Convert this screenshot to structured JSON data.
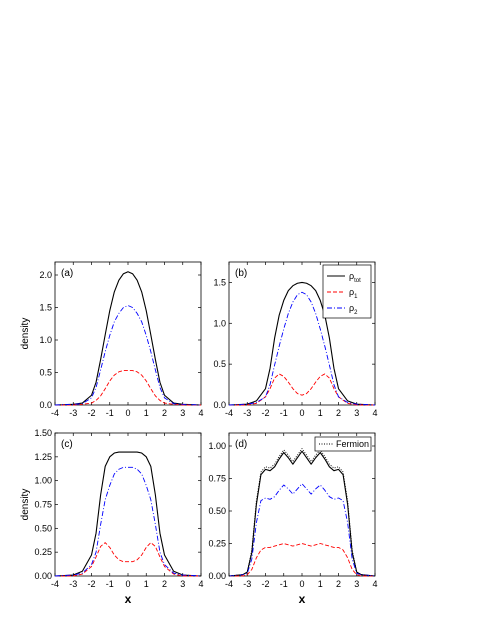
{
  "chart_data": [
    {
      "type": "line",
      "panel_label": "(a)",
      "ylabel": "density",
      "xlabel": "",
      "xlim": [
        -4,
        4
      ],
      "ylim": [
        0,
        2.2
      ],
      "xticks": [
        "-4",
        "-3",
        "-2",
        "-1",
        "0",
        "1",
        "2",
        "3",
        "4"
      ],
      "yticks": [
        "0.0",
        "0.5",
        "1.0",
        "1.5",
        "2.0"
      ],
      "ytick_values": [
        0,
        0.5,
        1.0,
        1.5,
        2.0
      ],
      "x": [
        -4,
        -3,
        -2.5,
        -2,
        -1.75,
        -1.5,
        -1.25,
        -1,
        -0.75,
        -0.5,
        -0.25,
        0,
        0.25,
        0.5,
        0.75,
        1,
        1.25,
        1.5,
        1.75,
        2,
        2.5,
        3,
        4
      ],
      "series": [
        {
          "key": "tot",
          "values": [
            0,
            0.01,
            0.03,
            0.15,
            0.35,
            0.7,
            1.08,
            1.45,
            1.74,
            1.92,
            2.02,
            2.05,
            2.02,
            1.92,
            1.74,
            1.45,
            1.08,
            0.7,
            0.35,
            0.15,
            0.03,
            0.01,
            0
          ]
        },
        {
          "key": "r1",
          "values": [
            0,
            0,
            0.01,
            0.03,
            0.07,
            0.14,
            0.25,
            0.37,
            0.46,
            0.51,
            0.53,
            0.53,
            0.53,
            0.51,
            0.46,
            0.37,
            0.25,
            0.14,
            0.07,
            0.03,
            0.01,
            0,
            0
          ]
        },
        {
          "key": "r2",
          "values": [
            0,
            0.01,
            0.02,
            0.11,
            0.27,
            0.54,
            0.82,
            1.07,
            1.28,
            1.41,
            1.5,
            1.53,
            1.5,
            1.41,
            1.28,
            1.07,
            0.82,
            0.54,
            0.27,
            0.11,
            0.02,
            0.01,
            0
          ]
        }
      ]
    },
    {
      "type": "line",
      "panel_label": "(b)",
      "ylabel": "",
      "xlabel": "",
      "xlim": [
        -4,
        4
      ],
      "ylim": [
        0,
        1.75
      ],
      "xticks": [
        "-4",
        "-3",
        "-2",
        "-1",
        "0",
        "1",
        "2",
        "3",
        "4"
      ],
      "yticks": [
        "0.0",
        "0.5",
        "1.0",
        "1.5"
      ],
      "ytick_values": [
        0,
        0.5,
        1.0,
        1.5
      ],
      "legend": [
        "tot",
        "1",
        "2"
      ],
      "x": [
        -4,
        -3,
        -2.5,
        -2,
        -1.75,
        -1.5,
        -1.25,
        -1,
        -0.75,
        -0.5,
        -0.25,
        0,
        0.25,
        0.5,
        0.75,
        1,
        1.25,
        1.5,
        1.75,
        2,
        2.5,
        3,
        4
      ],
      "series": [
        {
          "key": "tot",
          "name_main": "ρ",
          "name_sub": "tot",
          "values": [
            0,
            0.01,
            0.05,
            0.2,
            0.45,
            0.82,
            1.1,
            1.28,
            1.4,
            1.46,
            1.49,
            1.5,
            1.49,
            1.46,
            1.4,
            1.28,
            1.1,
            0.82,
            0.45,
            0.2,
            0.05,
            0.01,
            0
          ]
        },
        {
          "key": "r1",
          "name_main": "ρ",
          "name_sub": "1",
          "values": [
            0,
            0,
            0.02,
            0.1,
            0.2,
            0.33,
            0.38,
            0.35,
            0.28,
            0.2,
            0.14,
            0.12,
            0.14,
            0.2,
            0.28,
            0.35,
            0.38,
            0.33,
            0.2,
            0.1,
            0.02,
            0,
            0
          ]
        },
        {
          "key": "r2",
          "name_main": "ρ",
          "name_sub": "2",
          "values": [
            0,
            0.01,
            0.03,
            0.1,
            0.25,
            0.49,
            0.72,
            0.93,
            1.12,
            1.26,
            1.35,
            1.38,
            1.35,
            1.26,
            1.12,
            0.93,
            0.72,
            0.49,
            0.25,
            0.1,
            0.03,
            0.01,
            0
          ]
        }
      ]
    },
    {
      "type": "line",
      "panel_label": "(c)",
      "ylabel": "density",
      "xlabel": "x",
      "xlim": [
        -4,
        4
      ],
      "ylim": [
        0,
        1.5
      ],
      "xticks": [
        "-4",
        "-3",
        "-2",
        "-1",
        "0",
        "1",
        "2",
        "3",
        "4"
      ],
      "yticks": [
        "0.00",
        "0.25",
        "0.50",
        "0.75",
        "1.00",
        "1.25",
        "1.50"
      ],
      "ytick_values": [
        0,
        0.25,
        0.5,
        0.75,
        1.0,
        1.25,
        1.5
      ],
      "x": [
        -4,
        -3,
        -2.5,
        -2,
        -1.75,
        -1.5,
        -1.25,
        -1,
        -0.75,
        -0.5,
        -0.25,
        0,
        0.25,
        0.5,
        0.75,
        1,
        1.25,
        1.5,
        1.75,
        2,
        2.5,
        3,
        4
      ],
      "series": [
        {
          "key": "tot",
          "values": [
            0,
            0.01,
            0.05,
            0.22,
            0.45,
            0.85,
            1.15,
            1.25,
            1.29,
            1.3,
            1.3,
            1.3,
            1.3,
            1.3,
            1.29,
            1.25,
            1.15,
            0.85,
            0.45,
            0.22,
            0.05,
            0.01,
            0
          ]
        },
        {
          "key": "r1",
          "values": [
            0,
            0,
            0.02,
            0.1,
            0.2,
            0.31,
            0.35,
            0.3,
            0.22,
            0.17,
            0.15,
            0.15,
            0.15,
            0.17,
            0.22,
            0.3,
            0.35,
            0.31,
            0.2,
            0.1,
            0.02,
            0,
            0
          ]
        },
        {
          "key": "r2",
          "values": [
            0,
            0.01,
            0.03,
            0.12,
            0.25,
            0.54,
            0.8,
            0.95,
            1.07,
            1.12,
            1.14,
            1.14,
            1.14,
            1.12,
            1.07,
            0.95,
            0.8,
            0.54,
            0.25,
            0.12,
            0.03,
            0.01,
            0
          ]
        }
      ]
    },
    {
      "type": "line",
      "panel_label": "(d)",
      "ylabel": "",
      "xlabel": "x",
      "xlim": [
        -4,
        4
      ],
      "ylim": [
        0,
        1.1
      ],
      "xticks": [
        "-4",
        "-3",
        "-2",
        "-1",
        "0",
        "1",
        "2",
        "3",
        "4"
      ],
      "yticks": [
        "0.00",
        "0.25",
        "0.50",
        "0.75",
        "1.00"
      ],
      "ytick_values": [
        0,
        0.25,
        0.5,
        0.75,
        1.0
      ],
      "legend_label": "Fermion",
      "x": [
        -4,
        -3.25,
        -3,
        -2.75,
        -2.5,
        -2.25,
        -2,
        -1.75,
        -1.5,
        -1.25,
        -1,
        -0.75,
        -0.5,
        -0.25,
        0,
        0.25,
        0.5,
        0.75,
        1,
        1.25,
        1.5,
        1.75,
        2,
        2.25,
        2.5,
        2.75,
        3,
        3.25,
        4
      ],
      "series": [
        {
          "key": "tot",
          "values": [
            0,
            0.01,
            0.03,
            0.18,
            0.55,
            0.78,
            0.82,
            0.81,
            0.84,
            0.9,
            0.95,
            0.91,
            0.86,
            0.91,
            0.96,
            0.91,
            0.86,
            0.91,
            0.95,
            0.9,
            0.84,
            0.81,
            0.82,
            0.78,
            0.55,
            0.18,
            0.03,
            0.01,
            0
          ]
        },
        {
          "key": "r1",
          "values": [
            0,
            0,
            0.01,
            0.05,
            0.14,
            0.2,
            0.22,
            0.22,
            0.23,
            0.24,
            0.25,
            0.24,
            0.23,
            0.24,
            0.25,
            0.24,
            0.23,
            0.24,
            0.25,
            0.24,
            0.23,
            0.22,
            0.22,
            0.2,
            0.14,
            0.05,
            0.01,
            0,
            0
          ]
        },
        {
          "key": "r2",
          "values": [
            0,
            0.01,
            0.02,
            0.13,
            0.41,
            0.58,
            0.6,
            0.59,
            0.61,
            0.66,
            0.7,
            0.67,
            0.63,
            0.67,
            0.71,
            0.67,
            0.63,
            0.67,
            0.7,
            0.66,
            0.61,
            0.59,
            0.6,
            0.58,
            0.41,
            0.13,
            0.02,
            0.01,
            0
          ]
        },
        {
          "key": "fermion",
          "name": "Fermion",
          "values": [
            0,
            0.01,
            0.03,
            0.2,
            0.58,
            0.8,
            0.84,
            0.83,
            0.86,
            0.92,
            0.97,
            0.93,
            0.88,
            0.93,
            0.98,
            0.93,
            0.88,
            0.93,
            0.97,
            0.92,
            0.86,
            0.83,
            0.84,
            0.8,
            0.58,
            0.2,
            0.03,
            0.01,
            0
          ]
        }
      ]
    }
  ],
  "colors": {
    "tot": "#000000",
    "r1": "#ff0000",
    "r2": "#0000ff",
    "fermion": "#000000"
  }
}
